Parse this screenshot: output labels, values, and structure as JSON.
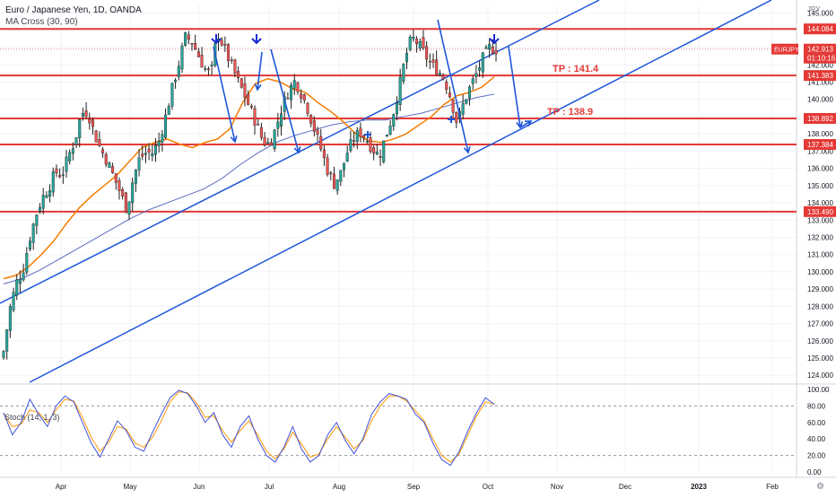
{
  "header": {
    "title": "Euro / Japanese Yen, 1D, OANDA",
    "indicator": "MA Cross (30, 90)",
    "currency": "JPY"
  },
  "stoch": {
    "label": "Stoch (14, 1, 3)"
  },
  "colors": {
    "bull": "#26a69a",
    "bear": "#ef5350",
    "candle": "#1e1e1e",
    "ma_fast": "#f57c00",
    "ma_slow": "#5c6bc0",
    "level": "#e53935",
    "trend": "#1e56d9",
    "stoch_k": "#3f51d8",
    "stoch_d": "#ff9800"
  },
  "price_axis": {
    "ticks": [
      "145.000",
      "144.000",
      "143.000",
      "142.000",
      "141.000",
      "140.000",
      "139.000",
      "138.000",
      "137.000",
      "136.000",
      "135.000",
      "134.000",
      "133.000",
      "132.000",
      "131.000",
      "130.000",
      "129.000",
      "128.000",
      "127.000",
      "126.000",
      "125.000",
      "124.000"
    ],
    "tag_last": {
      "symbol": "EURJPY",
      "price": "142.913",
      "countdown": "01:10:16"
    }
  },
  "stoch_axis": {
    "ticks": [
      "100.00",
      "80.00",
      "60.00",
      "40.00",
      "20.00",
      "0.00"
    ]
  },
  "time_axis": {
    "ticks": [
      "Apr",
      "May",
      "Jun",
      "Jul",
      "Aug",
      "Sep",
      "Oct",
      "Nov",
      "Dec",
      "2023",
      "Feb"
    ]
  },
  "annotations": {
    "tp1": "TP : 141.4",
    "tp2": "TP : 138.9"
  },
  "chart_data": {
    "type": "candlestick",
    "symbol": "EURJPY",
    "timeframe": "1D",
    "ylim": [
      123.7,
      145.5
    ],
    "horizontal_levels": [
      {
        "price": 144.084,
        "label": "144.084"
      },
      {
        "price": 141.383,
        "label": "141.383"
      },
      {
        "price": 138.892,
        "label": "138.892"
      },
      {
        "price": 137.384,
        "label": "137.384"
      },
      {
        "price": 133.49,
        "label": "133.490"
      }
    ],
    "last_price": 142.913,
    "take_profits": [
      141.4,
      138.9
    ],
    "close_path": [
      [
        125.4,
        127.9,
        129.4,
        130.1,
        131.9,
        133.3,
        134.3,
        134.9,
        135.8,
        135.6,
        136.7,
        137.6,
        139.2,
        139.3,
        138.0,
        137.1,
        136.4,
        135.5,
        134.6,
        133.6,
        135.4,
        136.6,
        136.9,
        136.9,
        137.6,
        139.0,
        140.6,
        142.0,
        143.6,
        143.4,
        142.6,
        141.8,
        141.4,
        143.9,
        143.0,
        142.1,
        141.2,
        140.4,
        139.5,
        138.6,
        137.6,
        137.4,
        138.3,
        139.6,
        140.5,
        141.1,
        140.3,
        139.4,
        138.2,
        137.1,
        135.9,
        135.1,
        135.7,
        136.9,
        137.7,
        138.1,
        137.7,
        137.1,
        136.7,
        137.9,
        139.0,
        140.6,
        142.4,
        143.6,
        143.2,
        142.6,
        142.0,
        141.7,
        141.2,
        140.1,
        138.6,
        139.8,
        140.7,
        141.5,
        142.4,
        143.0,
        142.9
      ]
    ],
    "ma_fast": [
      [
        129.6,
        129.8,
        130.3,
        131.0,
        131.8,
        132.8,
        133.7,
        134.4,
        135.0,
        135.6,
        136.4,
        137.2,
        137.5,
        137.7,
        137.4,
        137.2,
        137.5,
        137.7,
        138.3,
        139.8,
        140.9,
        141.2,
        141.0,
        140.6,
        140.4,
        139.8,
        139.3,
        138.7,
        138.0,
        137.6,
        137.5,
        137.7,
        138.0,
        138.5,
        139.0,
        139.7,
        140.2,
        140.4,
        140.7,
        141.3
      ]
    ],
    "ma_slow": [
      [
        129.3,
        129.6,
        130.1,
        130.7,
        131.3,
        131.9,
        132.5,
        133.1,
        133.6,
        134.0,
        134.4,
        134.8,
        135.4,
        136.2,
        136.9,
        137.5,
        137.9,
        138.2,
        138.5,
        138.7,
        138.8,
        138.8,
        139.0,
        139.2,
        139.5,
        139.8,
        140.1,
        140.3
      ]
    ],
    "stoch_k": [
      [
        72,
        45,
        60,
        88,
        70,
        55,
        80,
        92,
        85,
        60,
        35,
        18,
        40,
        62,
        50,
        30,
        25,
        48,
        70,
        90,
        99,
        95,
        80,
        60,
        72,
        45,
        30,
        55,
        68,
        40,
        20,
        12,
        30,
        55,
        28,
        12,
        20,
        45,
        60,
        38,
        22,
        40,
        70,
        85,
        95,
        92,
        88,
        70,
        60,
        35,
        15,
        8,
        25,
        50,
        72,
        90,
        82
      ]
    ],
    "stoch_d": [
      [
        70,
        55,
        58,
        75,
        72,
        60,
        75,
        88,
        86,
        66,
        42,
        25,
        36,
        55,
        52,
        35,
        30,
        42,
        62,
        85,
        97,
        96,
        84,
        66,
        68,
        50,
        36,
        50,
        62,
        45,
        25,
        16,
        28,
        48,
        34,
        18,
        22,
        40,
        55,
        42,
        28,
        38,
        62,
        80,
        92,
        92,
        86,
        74,
        62,
        40,
        20,
        12,
        22,
        45,
        68,
        85,
        82
      ]
    ]
  }
}
